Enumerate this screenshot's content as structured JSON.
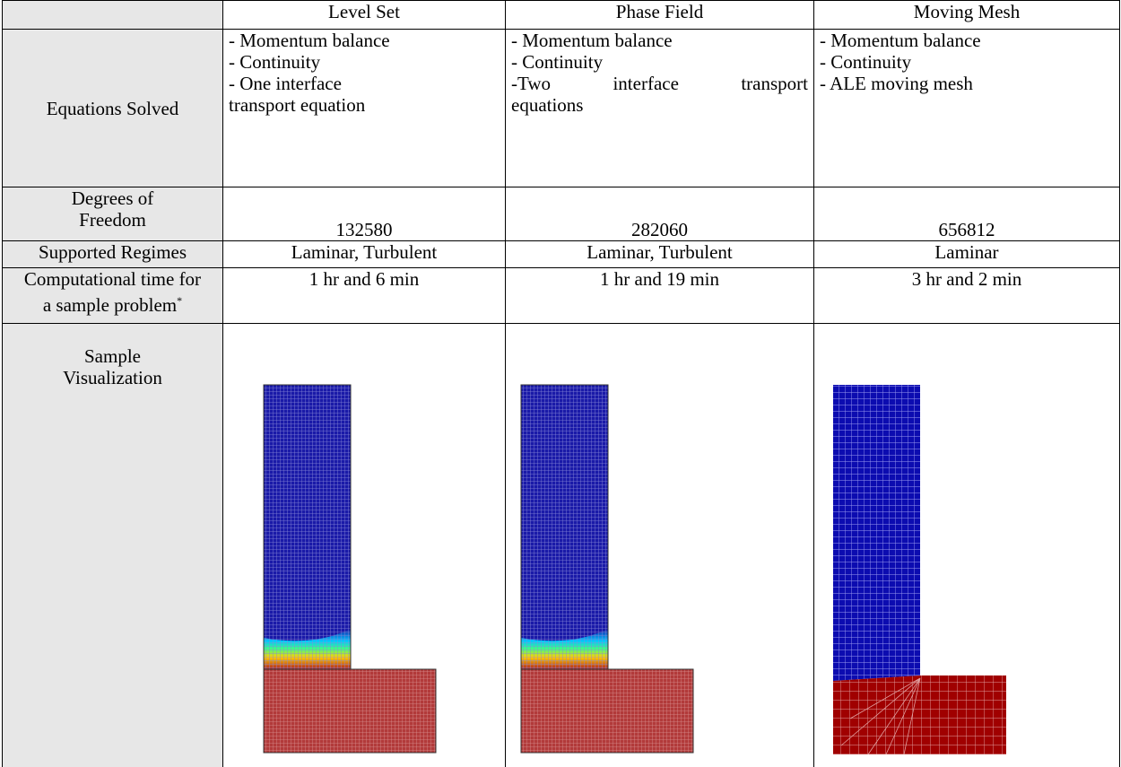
{
  "table": {
    "columns": [
      "Level Set",
      "Phase Field",
      "Moving Mesh"
    ],
    "rows": [
      {
        "label": "Equations Solved",
        "cells": [
          [
            "- Momentum balance",
            "- Continuity",
            "- One interface",
            "transport equation"
          ],
          [
            "- Momentum balance",
            "- Continuity",
            "-Two interface transport",
            "equations"
          ],
          [
            "- Momentum balance",
            "- Continuity",
            "- ALE moving mesh"
          ]
        ]
      },
      {
        "label": "Degrees of Freedom",
        "cells": [
          132580,
          282060,
          656812
        ]
      },
      {
        "label": "Supported Regimes",
        "cells": [
          "Laminar, Turbulent",
          "Laminar, Turbulent",
          "Laminar"
        ]
      },
      {
        "label": "Computational time for a sample problem",
        "footnote_mark": "*",
        "cells": [
          "1 hr and 6 min",
          "1 hr and 19 min",
          "3 hr and 2 min"
        ]
      },
      {
        "label": "Sample Visualization"
      }
    ]
  }
}
